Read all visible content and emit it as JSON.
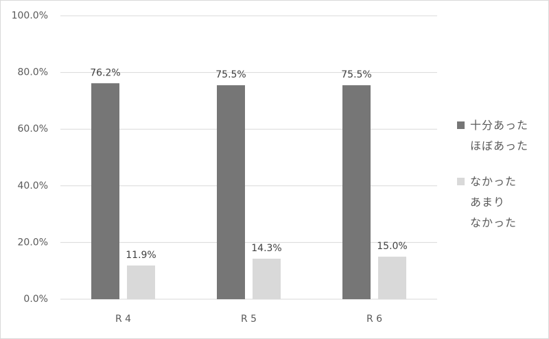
{
  "chart_data": {
    "type": "bar",
    "categories": [
      "R 4",
      "R 5",
      "R 6"
    ],
    "series": [
      {
        "name": "十分あった\nほぼあった",
        "color": "#767676",
        "values": [
          76.2,
          75.5,
          75.5
        ],
        "value_labels": [
          "76.2%",
          "75.5%",
          "75.5%"
        ]
      },
      {
        "name": "なかった\nあまり\nなかった",
        "color": "#d9d9d9",
        "values": [
          11.9,
          14.3,
          15.0
        ],
        "value_labels": [
          "11.9%",
          "14.3%",
          "15.0%"
        ]
      }
    ],
    "ylim": [
      0,
      100
    ],
    "yticks": [
      {
        "value": 0,
        "label": "0.0%"
      },
      {
        "value": 20,
        "label": "20.0%"
      },
      {
        "value": 40,
        "label": "40.0%"
      },
      {
        "value": 60,
        "label": "60.0%"
      },
      {
        "value": 80,
        "label": "80.0%"
      },
      {
        "value": 100,
        "label": "100.0%"
      }
    ],
    "grid": true,
    "legend": "right"
  }
}
